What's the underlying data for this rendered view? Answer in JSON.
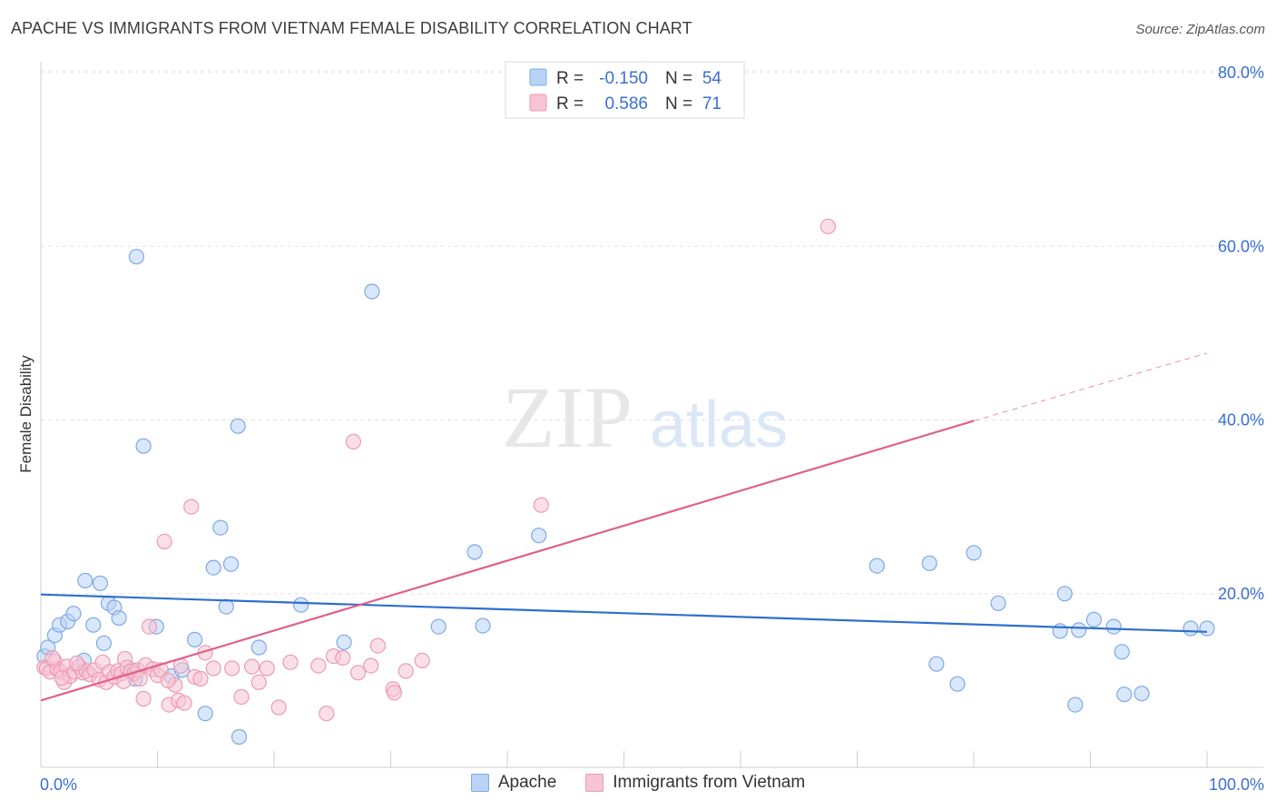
{
  "title": "APACHE VS IMMIGRANTS FROM VIETNAM FEMALE DISABILITY CORRELATION CHART",
  "source": "Source: ZipAtlas.com",
  "watermark": {
    "zip": "ZIP",
    "atlas": "atlas"
  },
  "legend_top": {
    "r_label": "R =",
    "n_label": "N =",
    "rows": [
      {
        "r": "-0.150",
        "n": "54"
      },
      {
        "r": "0.586",
        "n": "71"
      }
    ]
  },
  "chart_data": {
    "type": "scatter",
    "title": "APACHE VS IMMIGRANTS FROM VIETNAM FEMALE DISABILITY CORRELATION CHART",
    "xlabel": "",
    "ylabel": "Female Disability",
    "xlim": [
      0,
      100
    ],
    "ylim": [
      0,
      80
    ],
    "x_tick_labels": [
      "0.0%",
      "100.0%"
    ],
    "y_ticks": [
      20,
      40,
      60,
      80
    ],
    "y_tick_labels": [
      "20.0%",
      "40.0%",
      "60.0%",
      "80.0%"
    ],
    "grid": true,
    "legend_position": "bottom-center",
    "colors": {
      "apache_fill": "#b8d3f5",
      "apache_stroke": "#7fa9e3",
      "apache_line": "#2f6fcc",
      "vietnam_fill": "#f7c4d4",
      "vietnam_stroke": "#ec9ab4",
      "vietnam_line": "#e0608a",
      "value_text": "#3a6fcf"
    },
    "series": [
      {
        "name": "Apache",
        "trend": {
          "x0": 0,
          "y0": 19.9,
          "x1": 100,
          "y1": 15.6
        },
        "points": [
          [
            0.3,
            12.8
          ],
          [
            0.6,
            13.8
          ],
          [
            1.2,
            15.2
          ],
          [
            1.6,
            16.4
          ],
          [
            2.3,
            16.8
          ],
          [
            2.8,
            17.7
          ],
          [
            3.7,
            12.3
          ],
          [
            3.8,
            21.5
          ],
          [
            4.5,
            16.4
          ],
          [
            5.1,
            21.2
          ],
          [
            5.4,
            14.3
          ],
          [
            5.8,
            18.9
          ],
          [
            6.3,
            18.4
          ],
          [
            6.7,
            17.2
          ],
          [
            7.8,
            11.2
          ],
          [
            8.1,
            10.2
          ],
          [
            8.2,
            58.8
          ],
          [
            8.8,
            37.0
          ],
          [
            9.9,
            16.2
          ],
          [
            11.2,
            10.5
          ],
          [
            12.1,
            11.2
          ],
          [
            13.2,
            14.7
          ],
          [
            14.1,
            6.2
          ],
          [
            14.8,
            23.0
          ],
          [
            15.4,
            27.6
          ],
          [
            15.9,
            18.5
          ],
          [
            16.3,
            23.4
          ],
          [
            16.9,
            39.3
          ],
          [
            17.0,
            3.5
          ],
          [
            18.7,
            13.8
          ],
          [
            22.3,
            18.7
          ],
          [
            26.0,
            14.4
          ],
          [
            28.4,
            54.8
          ],
          [
            34.1,
            16.2
          ],
          [
            37.2,
            24.8
          ],
          [
            37.9,
            16.3
          ],
          [
            42.7,
            26.7
          ],
          [
            71.7,
            23.2
          ],
          [
            76.2,
            23.5
          ],
          [
            76.8,
            11.9
          ],
          [
            78.6,
            9.6
          ],
          [
            80.0,
            24.7
          ],
          [
            82.1,
            18.9
          ],
          [
            87.4,
            15.7
          ],
          [
            87.8,
            20.0
          ],
          [
            88.7,
            7.2
          ],
          [
            89.0,
            15.8
          ],
          [
            90.3,
            17.0
          ],
          [
            92.0,
            16.2
          ],
          [
            92.7,
            13.3
          ],
          [
            92.9,
            8.4
          ],
          [
            94.4,
            8.5
          ],
          [
            98.6,
            16.0
          ],
          [
            100.0,
            16.0
          ]
        ]
      },
      {
        "name": "Immigrants from Vietnam",
        "trend": {
          "x0": 0,
          "y0": 7.7,
          "x1": 80,
          "y1": 39.9
        },
        "trend_dashed": {
          "x0": 80,
          "y0": 39.9,
          "x1": 100,
          "y1": 47.7
        },
        "points": [
          [
            0.3,
            11.5
          ],
          [
            0.5,
            11.4
          ],
          [
            0.8,
            11.0
          ],
          [
            1.2,
            12.2
          ],
          [
            1.4,
            11.3
          ],
          [
            1.7,
            11.0
          ],
          [
            2.0,
            9.8
          ],
          [
            2.2,
            11.6
          ],
          [
            2.5,
            10.5
          ],
          [
            2.9,
            11.0
          ],
          [
            3.3,
            11.6
          ],
          [
            3.6,
            10.9
          ],
          [
            3.9,
            11.1
          ],
          [
            4.2,
            10.7
          ],
          [
            4.6,
            11.2
          ],
          [
            5.0,
            10.1
          ],
          [
            5.3,
            12.1
          ],
          [
            5.6,
            9.8
          ],
          [
            5.9,
            11.0
          ],
          [
            6.3,
            10.4
          ],
          [
            6.6,
            11.1
          ],
          [
            6.9,
            10.8
          ],
          [
            7.2,
            12.5
          ],
          [
            7.4,
            11.5
          ],
          [
            7.7,
            11.0
          ],
          [
            8.0,
            10.8
          ],
          [
            8.3,
            11.2
          ],
          [
            8.5,
            10.2
          ],
          [
            8.8,
            7.9
          ],
          [
            9.0,
            11.8
          ],
          [
            9.3,
            16.2
          ],
          [
            9.6,
            11.3
          ],
          [
            10.0,
            10.6
          ],
          [
            10.3,
            11.2
          ],
          [
            10.6,
            26.0
          ],
          [
            11.0,
            7.2
          ],
          [
            11.5,
            9.5
          ],
          [
            11.8,
            7.7
          ],
          [
            12.0,
            11.7
          ],
          [
            12.3,
            7.4
          ],
          [
            12.9,
            30.0
          ],
          [
            13.2,
            10.4
          ],
          [
            13.7,
            10.2
          ],
          [
            14.1,
            13.2
          ],
          [
            14.8,
            11.4
          ],
          [
            16.4,
            11.4
          ],
          [
            17.2,
            8.1
          ],
          [
            18.1,
            11.6
          ],
          [
            18.7,
            9.8
          ],
          [
            19.4,
            11.4
          ],
          [
            20.4,
            6.9
          ],
          [
            21.4,
            12.1
          ],
          [
            23.8,
            11.7
          ],
          [
            24.5,
            6.2
          ],
          [
            25.1,
            12.8
          ],
          [
            25.9,
            12.6
          ],
          [
            26.8,
            37.5
          ],
          [
            28.3,
            11.7
          ],
          [
            28.9,
            14.0
          ],
          [
            30.2,
            9.0
          ],
          [
            30.3,
            8.6
          ],
          [
            31.3,
            11.1
          ],
          [
            32.7,
            12.3
          ],
          [
            42.9,
            30.2
          ],
          [
            67.5,
            62.3
          ],
          [
            1.0,
            12.6
          ],
          [
            1.8,
            10.3
          ],
          [
            3.1,
            12.0
          ],
          [
            7.1,
            9.9
          ],
          [
            10.9,
            10.0
          ],
          [
            27.2,
            10.9
          ]
        ]
      }
    ]
  }
}
